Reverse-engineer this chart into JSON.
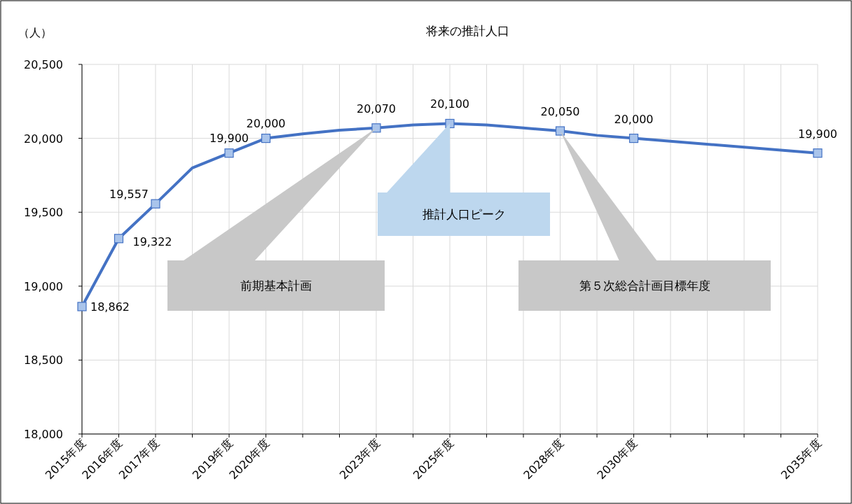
{
  "chart_data": {
    "type": "line",
    "title": "将来の推計人口",
    "ylabel": "（人）",
    "x": [
      2015,
      2016,
      2017,
      2018,
      2019,
      2020,
      2021,
      2022,
      2023,
      2024,
      2025,
      2026,
      2027,
      2028,
      2029,
      2030,
      2035
    ],
    "series": [
      {
        "color": "#4472c4",
        "marker": "none",
        "values": [
          18862,
          19322,
          19557,
          19800,
          19900,
          20000,
          20030,
          20055,
          20070,
          20090,
          20100,
          20090,
          20070,
          20050,
          20020,
          20000,
          19900
        ]
      },
      {
        "type": "scatter",
        "color": "#4472c4",
        "marker": "square",
        "x": [
          2015,
          2016,
          2017,
          2019,
          2020,
          2023,
          2025,
          2028,
          2030,
          2035
        ],
        "values": [
          18862,
          19322,
          19557,
          19900,
          20000,
          20070,
          20100,
          20050,
          20000,
          19900
        ],
        "value_labels": [
          "18,862",
          "19,322",
          "19,557",
          "19,900",
          "20,000",
          "20,070",
          "20,100",
          "20,050",
          "20,000",
          "19,900"
        ]
      }
    ],
    "xlim": [
      2015,
      2035
    ],
    "xticks": [
      {
        "value": 2015,
        "label": "2015年度"
      },
      {
        "value": 2016,
        "label": "2016年度"
      },
      {
        "value": 2017,
        "label": "2017年度"
      },
      {
        "value": 2018,
        "label": null
      },
      {
        "value": 2019,
        "label": "2019年度"
      },
      {
        "value": 2020,
        "label": "2020年度"
      },
      {
        "value": 2021,
        "label": null
      },
      {
        "value": 2022,
        "label": null
      },
      {
        "value": 2023,
        "label": "2023年度"
      },
      {
        "value": 2024,
        "label": null
      },
      {
        "value": 2025,
        "label": "2025年度"
      },
      {
        "value": 2026,
        "label": null
      },
      {
        "value": 2027,
        "label": null
      },
      {
        "value": 2028,
        "label": "2028年度"
      },
      {
        "value": 2029,
        "label": null
      },
      {
        "value": 2030,
        "label": "2030年度"
      },
      {
        "value": 2031,
        "label": null
      },
      {
        "value": 2032,
        "label": null
      },
      {
        "value": 2033,
        "label": null
      },
      {
        "value": 2034,
        "label": null
      },
      {
        "value": 2035,
        "label": "2035年度"
      }
    ],
    "ylim": [
      18000,
      20500
    ],
    "yticks": [
      {
        "value": 18000,
        "label": "18,000"
      },
      {
        "value": 18500,
        "label": "18,500"
      },
      {
        "value": 19000,
        "label": "19,000"
      },
      {
        "value": 19500,
        "label": "19,500"
      },
      {
        "value": 20000,
        "label": "20,000"
      },
      {
        "value": 20500,
        "label": "20,500"
      }
    ],
    "grid": true,
    "annotations": [
      "前期基本計画",
      "推計人口ピーク",
      "第５次総合計画目標年度"
    ]
  }
}
